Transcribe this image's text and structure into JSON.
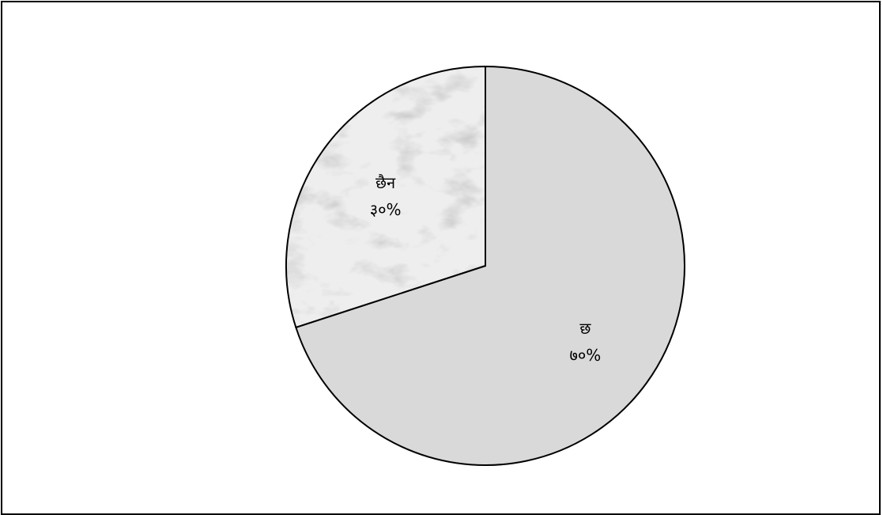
{
  "chart_data": {
    "type": "pie",
    "title": "",
    "start_angle_deg": 0,
    "direction": "clockwise",
    "slices": [
      {
        "label": "छ",
        "value": 70,
        "value_label": "७०%",
        "fill": "#d9d9d9",
        "texture": "none"
      },
      {
        "label": "छैन",
        "value": 30,
        "value_label": "३०%",
        "fill": "#e6e6e6",
        "texture": "marble"
      }
    ],
    "legend": "none",
    "outline_color": "#000000"
  }
}
